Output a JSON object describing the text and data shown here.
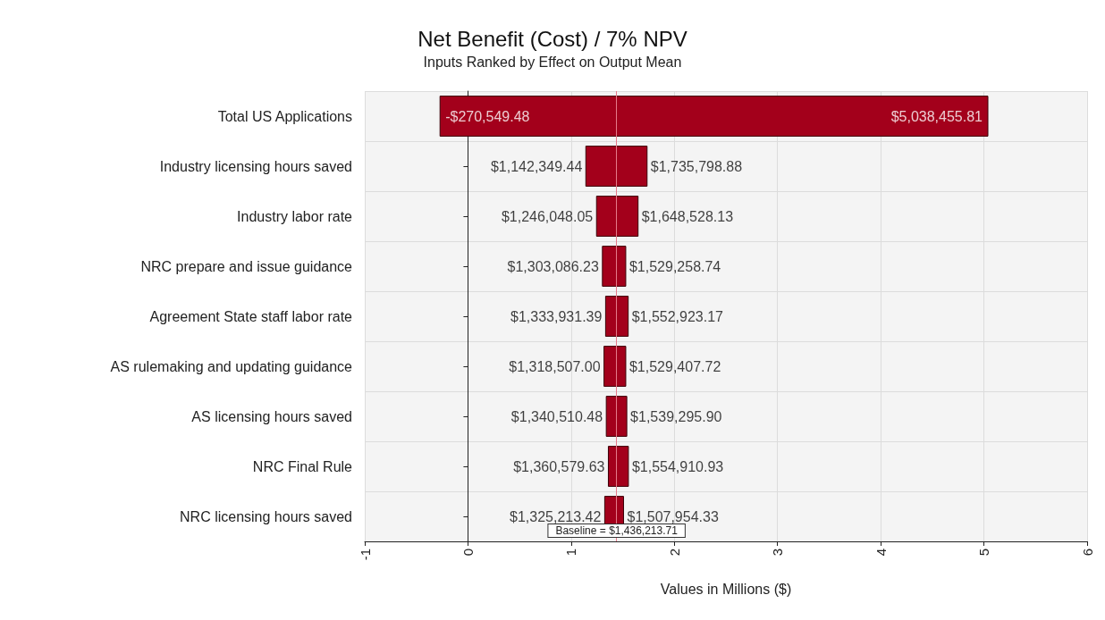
{
  "chart_data": {
    "type": "bar",
    "orientation": "horizontal",
    "title": "Net Benefit (Cost) / 7% NPV",
    "subtitle": "Inputs Ranked by Effect on Output Mean",
    "xlabel": "Values in Millions ($)",
    "categories": [
      "Total US Applications",
      "Industry licensing hours saved",
      "Industry labor rate",
      "NRC prepare and issue guidance",
      "Agreement State staff labor rate",
      "AS rulemaking and updating guidance",
      "AS licensing hours saved",
      "NRC Final Rule",
      "NRC licensing hours saved"
    ],
    "base": [
      -0.27054948,
      1.14234944,
      1.24604805,
      1.30308623,
      1.33393139,
      1.318507,
      1.34051048,
      1.36057963,
      1.32521342
    ],
    "values": [
      5.30900529,
      0.59344944,
      0.40248008,
      0.22617251,
      0.21899178,
      0.21090072,
      0.19878542,
      0.1943313,
      0.18274091
    ],
    "color": "#a3001b",
    "xlim": [
      -1,
      6
    ],
    "xticks": [
      -1,
      0,
      1,
      2,
      3,
      4,
      5,
      6
    ],
    "grid": true,
    "ref_lines": [
      {
        "axis": "x",
        "value": 1.43621371,
        "label": "Baseline = $1,436,213.71",
        "color": "#e57a8a"
      }
    ],
    "annotations": [
      {
        "text": "-$270,549.48",
        "x": -0.27054948,
        "y": "Total US Applications"
      },
      {
        "text": "$5,038,455.81",
        "x": 5.03845581,
        "y": "Total US Applications"
      },
      {
        "text": "$1,142,349.44",
        "x": 1.14234944,
        "y": "Industry licensing hours saved"
      },
      {
        "text": "$1,735,798.88",
        "x": 1.73579888,
        "y": "Industry licensing hours saved"
      },
      {
        "text": "$1,246,048.05",
        "x": 1.24604805,
        "y": "Industry labor rate"
      },
      {
        "text": "$1,648,528.13",
        "x": 1.64852813,
        "y": "Industry labor rate"
      },
      {
        "text": "$1,303,086.23",
        "x": 1.30308623,
        "y": "NRC prepare and issue guidance"
      },
      {
        "text": "$1,529,258.74",
        "x": 1.52925874,
        "y": "NRC prepare and issue guidance"
      },
      {
        "text": "$1,333,931.39",
        "x": 1.33393139,
        "y": "Agreement State staff labor rate"
      },
      {
        "text": "$1,552,923.17",
        "x": 1.55292317,
        "y": "Agreement State staff labor rate"
      },
      {
        "text": "$1,318,507.00",
        "x": 1.318507,
        "y": "AS rulemaking and updating guidance"
      },
      {
        "text": "$1,529,407.72",
        "x": 1.52940772,
        "y": "AS rulemaking and updating guidance"
      },
      {
        "text": "$1,340,510.48",
        "x": 1.34051048,
        "y": "AS licensing hours saved"
      },
      {
        "text": "$1,539,295.90",
        "x": 1.5392959,
        "y": "AS licensing hours saved"
      },
      {
        "text": "$1,360,579.63",
        "x": 1.36057963,
        "y": "NRC Final Rule"
      },
      {
        "text": "$1,554,910.93",
        "x": 1.55491093,
        "y": "NRC Final Rule"
      },
      {
        "text": "$1,325,213.42",
        "x": 1.32521342,
        "y": "NRC licensing hours saved"
      },
      {
        "text": "$1,507,954.33",
        "x": 1.50795433,
        "y": "NRC licensing hours saved"
      }
    ]
  }
}
